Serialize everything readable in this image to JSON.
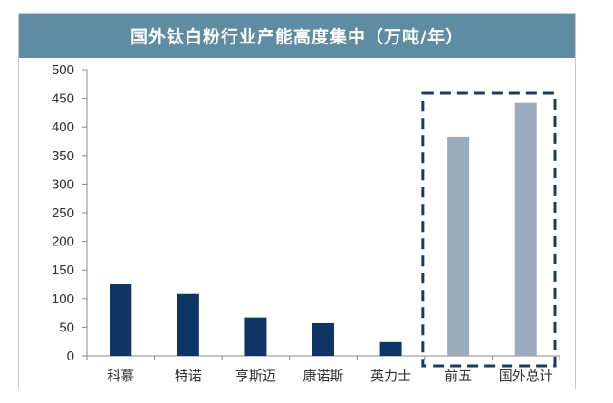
{
  "chart_data": {
    "type": "bar",
    "title": "国外钛白粉行业产能高度集中（万吨/年）",
    "xlabel": "",
    "ylabel": "",
    "categories": [
      "科慕",
      "特诺",
      "亨斯迈",
      "康诺斯",
      "英力士",
      "前五",
      "国外总计"
    ],
    "values": [
      125,
      108,
      67,
      57,
      24,
      383,
      442
    ],
    "ylim": [
      0,
      500
    ],
    "yticks": [
      0,
      50,
      100,
      150,
      200,
      250,
      300,
      350,
      400,
      450,
      500
    ],
    "grid": false,
    "legend": "none",
    "highlight": {
      "categories": [
        "前五",
        "国外总计"
      ],
      "style": "dashed-box"
    }
  },
  "colors": {
    "title_bar": "#5e8da3",
    "bar_primary": "#0f3564",
    "bar_highlight": "#9aabbd",
    "highlight_box": "#1c3a5e"
  }
}
